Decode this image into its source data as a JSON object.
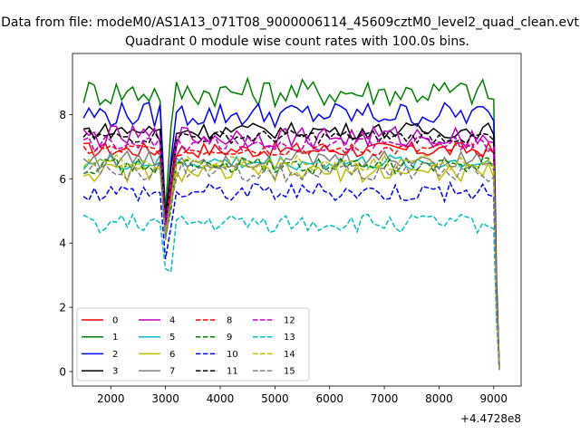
{
  "suptitle": "Data from file: modeM0/AS1A13_071T08_9000006114_45609cztM0_level2_quad_clean.evt",
  "chart_data": {
    "type": "line",
    "title": "Quadrant 0 module wise count rates with 100.0s bins.",
    "xlabel": "",
    "ylabel": "",
    "x_offset_label": "+4.4728e8",
    "xlim": [
      1300,
      9500
    ],
    "ylim": [
      -0.45,
      9.9
    ],
    "xticks": [
      2000,
      3000,
      4000,
      5000,
      6000,
      7000,
      8000,
      9000
    ],
    "yticks": [
      0,
      2,
      4,
      6,
      8
    ],
    "x_start": 1500,
    "x_step": 100,
    "dip_x": [
      3000,
      3100
    ],
    "final_x": [
      9000,
      9050,
      9100
    ],
    "legend_position": "lower-left",
    "series": [
      {
        "name": "0",
        "color": "#ff0000",
        "dash": false,
        "base": 6.9,
        "amp": 0.25,
        "dip": 4.5,
        "end": 0.25
      },
      {
        "name": "1",
        "color": "#008000",
        "dash": false,
        "base": 8.7,
        "amp": 0.45,
        "dip": 5.0,
        "end": 0.2
      },
      {
        "name": "2",
        "color": "#0000ff",
        "dash": false,
        "base": 8.0,
        "amp": 0.4,
        "dip": 4.6,
        "end": 0.15
      },
      {
        "name": "3",
        "color": "#000000",
        "dash": false,
        "base": 7.5,
        "amp": 0.25,
        "dip": 4.8,
        "end": 0.1
      },
      {
        "name": "4",
        "color": "#bf00bf",
        "dash": false,
        "base": 7.3,
        "amp": 0.35,
        "dip": 4.6,
        "end": 0.2
      },
      {
        "name": "5",
        "color": "#00bfbf",
        "dash": false,
        "base": 6.5,
        "amp": 0.25,
        "dip": 4.2,
        "end": 0.15
      },
      {
        "name": "6",
        "color": "#bfbf00",
        "dash": false,
        "base": 6.2,
        "amp": 0.3,
        "dip": 4.3,
        "end": 0.1
      },
      {
        "name": "7",
        "color": "#808080",
        "dash": false,
        "base": 6.6,
        "amp": 0.3,
        "dip": 4.4,
        "end": 0.1
      },
      {
        "name": "8",
        "color": "#ff0000",
        "dash": true,
        "base": 6.9,
        "amp": 0.2,
        "dip": 4.5,
        "end": 0.2
      },
      {
        "name": "9",
        "color": "#008000",
        "dash": true,
        "base": 6.4,
        "amp": 0.25,
        "dip": 4.2,
        "end": 0.15
      },
      {
        "name": "10",
        "color": "#0000ff",
        "dash": true,
        "base": 5.6,
        "amp": 0.3,
        "dip": 3.5,
        "end": 0.1
      },
      {
        "name": "11",
        "color": "#000000",
        "dash": true,
        "base": 7.3,
        "amp": 0.2,
        "dip": 4.6,
        "end": 0.1
      },
      {
        "name": "12",
        "color": "#bf00bf",
        "dash": true,
        "base": 7.1,
        "amp": 0.25,
        "dip": 4.5,
        "end": 0.15
      },
      {
        "name": "13",
        "color": "#00bfbf",
        "dash": true,
        "base": 4.6,
        "amp": 0.3,
        "dip": 3.2,
        "end": 0.05
      },
      {
        "name": "14",
        "color": "#bfbf00",
        "dash": true,
        "base": 6.5,
        "amp": 0.25,
        "dip": 4.3,
        "end": 0.1
      },
      {
        "name": "15",
        "color": "#808080",
        "dash": true,
        "base": 6.2,
        "amp": 0.3,
        "dip": 4.1,
        "end": 0.05
      }
    ]
  }
}
